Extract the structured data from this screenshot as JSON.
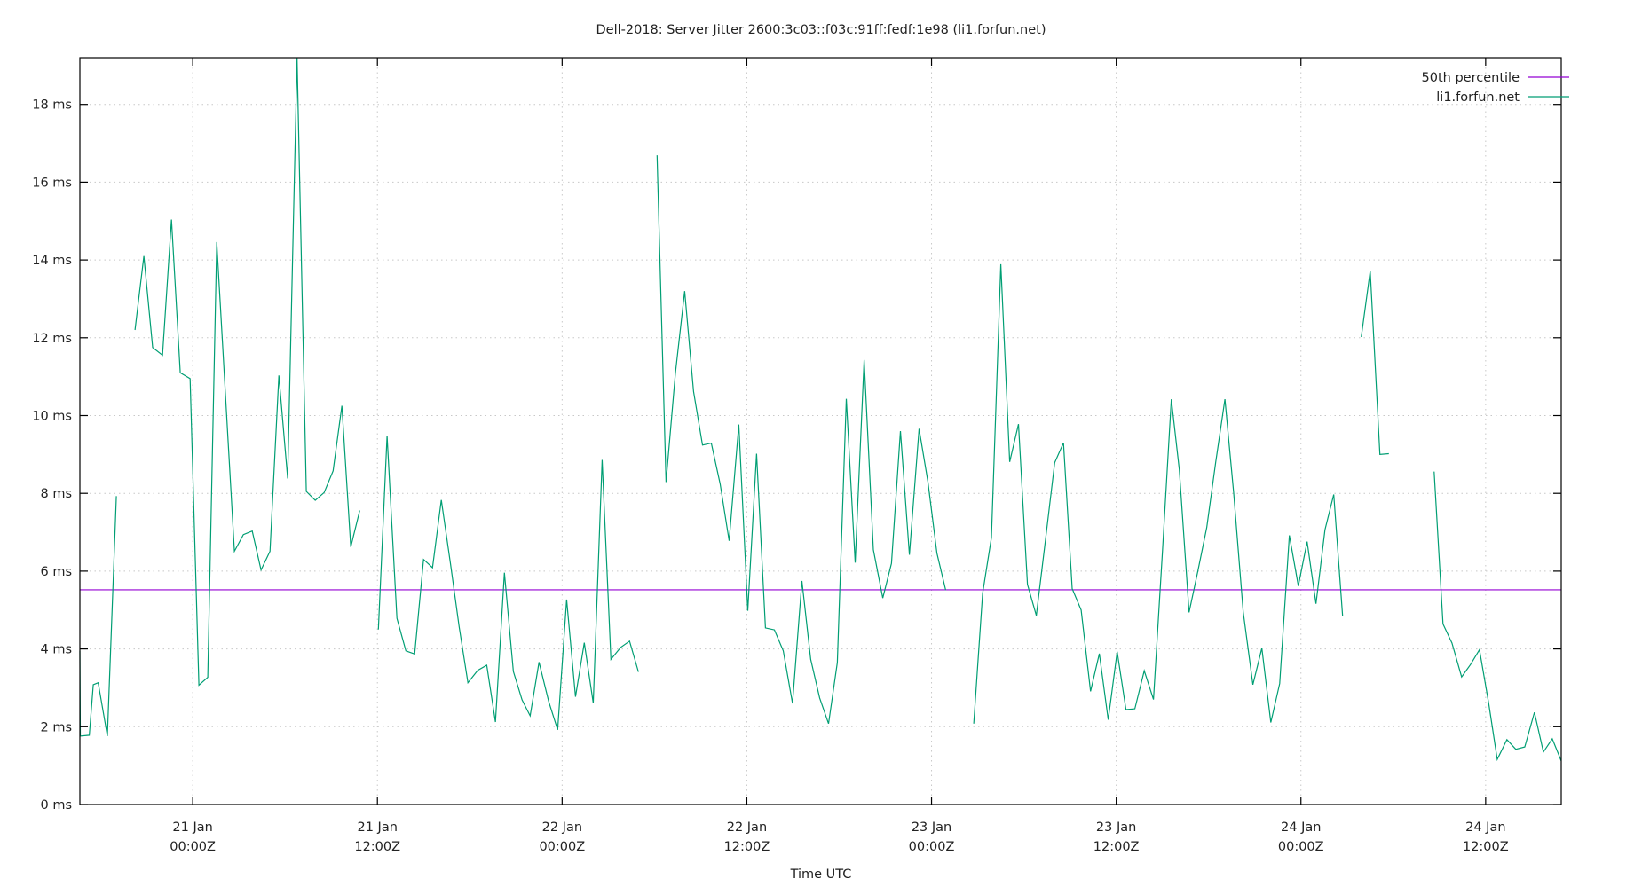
{
  "chart_data": {
    "type": "line",
    "title": "Dell-2018: Server Jitter 2600:3c03::f03c:91ff:fedf:1e98 (li1.forfun.net)",
    "xlabel": "Time UTC",
    "ylabel": "",
    "x_units": "hours since 21 Jan 00:00Z",
    "xlim": [
      -7.33,
      88.91
    ],
    "ylim": [
      0,
      19.2
    ],
    "grid": true,
    "legend_position": "top-right",
    "y_ticks": [
      {
        "value": 0,
        "label": "0 ms"
      },
      {
        "value": 2,
        "label": "2 ms"
      },
      {
        "value": 4,
        "label": "4 ms"
      },
      {
        "value": 6,
        "label": "6 ms"
      },
      {
        "value": 8,
        "label": "8 ms"
      },
      {
        "value": 10,
        "label": "10 ms"
      },
      {
        "value": 12,
        "label": "12 ms"
      },
      {
        "value": 14,
        "label": "14 ms"
      },
      {
        "value": 16,
        "label": "16 ms"
      },
      {
        "value": 18,
        "label": "18 ms"
      }
    ],
    "x_ticks": [
      {
        "value": 0,
        "line1": "21 Jan",
        "line2": "00:00Z"
      },
      {
        "value": 12,
        "line1": "21 Jan",
        "line2": "12:00Z"
      },
      {
        "value": 24,
        "line1": "22 Jan",
        "line2": "00:00Z"
      },
      {
        "value": 36,
        "line1": "22 Jan",
        "line2": "12:00Z"
      },
      {
        "value": 48,
        "line1": "23 Jan",
        "line2": "00:00Z"
      },
      {
        "value": 60,
        "line1": "23 Jan",
        "line2": "12:00Z"
      },
      {
        "value": 72,
        "line1": "24 Jan",
        "line2": "00:00Z"
      },
      {
        "value": 84,
        "line1": "24 Jan",
        "line2": "12:00Z"
      }
    ],
    "series": [
      {
        "name": "50th percentile",
        "color": "#9400d3",
        "kind": "hline",
        "value": 5.52
      },
      {
        "name": "li1.forfun.net",
        "color": "#009e73",
        "kind": "line",
        "segments": [
          [
            [
              -7.33,
              3.95
            ],
            [
              -7.3,
              1.76
            ],
            [
              -6.72,
              1.78
            ],
            [
              -6.46,
              3.08
            ],
            [
              -6.14,
              3.13
            ],
            [
              -5.54,
              1.76
            ],
            [
              -4.96,
              7.93
            ]
          ],
          [
            [
              -3.75,
              12.2
            ],
            [
              -3.17,
              14.1
            ],
            [
              -2.6,
              11.75
            ],
            [
              -1.96,
              11.55
            ],
            [
              -1.38,
              15.04
            ],
            [
              -0.81,
              11.1
            ],
            [
              -0.17,
              10.95
            ],
            [
              0.4,
              3.07
            ],
            [
              0.98,
              3.27
            ],
            [
              1.56,
              14.46
            ],
            [
              2.71,
              6.51
            ],
            [
              3.29,
              6.94
            ],
            [
              3.87,
              7.03
            ],
            [
              4.44,
              6.03
            ],
            [
              5.02,
              6.51
            ],
            [
              5.6,
              11.03
            ],
            [
              6.17,
              8.38
            ],
            [
              6.78,
              19.2
            ],
            [
              7.38,
              8.05
            ],
            [
              7.96,
              7.82
            ],
            [
              8.54,
              8.02
            ],
            [
              9.12,
              8.58
            ],
            [
              9.69,
              10.25
            ],
            [
              10.27,
              6.62
            ],
            [
              10.85,
              7.56
            ]
          ],
          [
            [
              12.06,
              4.5
            ],
            [
              12.63,
              9.48
            ],
            [
              13.27,
              4.79
            ],
            [
              13.85,
              3.95
            ],
            [
              14.42,
              3.87
            ],
            [
              15.0,
              6.3
            ],
            [
              15.58,
              6.09
            ],
            [
              16.15,
              7.83
            ],
            [
              16.73,
              6.23
            ],
            [
              17.31,
              4.57
            ],
            [
              17.88,
              3.13
            ],
            [
              18.52,
              3.45
            ],
            [
              19.1,
              3.58
            ],
            [
              19.67,
              2.12
            ],
            [
              20.25,
              5.96
            ],
            [
              20.83,
              3.42
            ],
            [
              21.4,
              2.69
            ],
            [
              21.92,
              2.28
            ],
            [
              22.5,
              3.66
            ],
            [
              23.13,
              2.65
            ],
            [
              23.71,
              1.92
            ],
            [
              24.29,
              5.27
            ],
            [
              24.87,
              2.77
            ],
            [
              25.44,
              4.16
            ],
            [
              26.02,
              2.61
            ],
            [
              26.6,
              8.86
            ],
            [
              27.17,
              3.73
            ],
            [
              27.81,
              4.04
            ],
            [
              28.38,
              4.2
            ],
            [
              28.96,
              3.41
            ]
          ],
          [
            [
              30.17,
              16.69
            ],
            [
              30.75,
              8.29
            ],
            [
              31.36,
              11.1
            ],
            [
              31.96,
              13.2
            ],
            [
              32.54,
              10.62
            ],
            [
              33.12,
              9.24
            ],
            [
              33.69,
              9.29
            ],
            [
              34.27,
              8.24
            ],
            [
              34.85,
              6.78
            ],
            [
              35.48,
              9.77
            ],
            [
              36.06,
              4.98
            ],
            [
              36.63,
              9.02
            ],
            [
              37.21,
              4.54
            ],
            [
              37.79,
              4.49
            ],
            [
              38.37,
              3.95
            ],
            [
              38.97,
              2.6
            ],
            [
              39.58,
              5.75
            ],
            [
              40.15,
              3.73
            ],
            [
              40.73,
              2.74
            ],
            [
              41.31,
              2.08
            ],
            [
              41.88,
              3.65
            ],
            [
              42.46,
              10.43
            ],
            [
              43.04,
              6.22
            ],
            [
              43.62,
              11.43
            ],
            [
              44.22,
              6.55
            ],
            [
              44.83,
              5.31
            ],
            [
              45.4,
              6.2
            ],
            [
              45.98,
              9.6
            ],
            [
              46.56,
              6.42
            ],
            [
              47.19,
              9.66
            ],
            [
              47.77,
              8.29
            ],
            [
              48.35,
              6.46
            ],
            [
              48.92,
              5.51
            ]
          ],
          [
            [
              50.74,
              2.08
            ],
            [
              51.32,
              5.43
            ],
            [
              51.89,
              6.86
            ],
            [
              52.5,
              13.89
            ],
            [
              53.08,
              8.81
            ],
            [
              53.65,
              9.78
            ],
            [
              54.23,
              5.66
            ],
            [
              54.81,
              4.86
            ],
            [
              55.4,
              6.8
            ],
            [
              56.0,
              8.79
            ],
            [
              56.57,
              9.3
            ],
            [
              57.14,
              5.55
            ],
            [
              57.72,
              5.0
            ],
            [
              58.33,
              2.91
            ],
            [
              58.9,
              3.88
            ],
            [
              59.48,
              2.18
            ],
            [
              60.06,
              3.93
            ],
            [
              60.63,
              2.44
            ],
            [
              61.21,
              2.46
            ],
            [
              61.82,
              3.44
            ],
            [
              62.42,
              2.7
            ],
            [
              63.0,
              6.5
            ],
            [
              63.58,
              10.42
            ],
            [
              64.1,
              8.61
            ],
            [
              64.73,
              4.94
            ],
            [
              65.3,
              6.0
            ],
            [
              65.88,
              7.12
            ],
            [
              66.46,
              8.8
            ],
            [
              67.06,
              10.42
            ],
            [
              67.63,
              8.0
            ],
            [
              68.25,
              4.95
            ],
            [
              68.88,
              3.08
            ],
            [
              69.46,
              4.02
            ],
            [
              70.04,
              2.11
            ],
            [
              70.62,
              3.11
            ],
            [
              71.25,
              6.92
            ],
            [
              71.83,
              5.62
            ],
            [
              72.4,
              6.76
            ],
            [
              72.98,
              5.16
            ],
            [
              73.56,
              7.06
            ],
            [
              74.13,
              7.97
            ],
            [
              74.71,
              4.84
            ]
          ],
          [
            [
              75.92,
              12.02
            ],
            [
              76.5,
              13.72
            ],
            [
              77.13,
              9.0
            ],
            [
              77.71,
              9.02
            ]
          ],
          [
            [
              80.65,
              8.56
            ],
            [
              81.23,
              4.64
            ],
            [
              81.81,
              4.15
            ],
            [
              82.44,
              3.28
            ],
            [
              83.02,
              3.6
            ],
            [
              83.6,
              3.98
            ],
            [
              84.2,
              2.6
            ],
            [
              84.75,
              1.16
            ],
            [
              85.38,
              1.67
            ],
            [
              85.96,
              1.42
            ],
            [
              86.54,
              1.48
            ],
            [
              87.17,
              2.37
            ],
            [
              87.75,
              1.35
            ],
            [
              88.33,
              1.69
            ],
            [
              88.91,
              1.12
            ]
          ]
        ]
      }
    ]
  },
  "legend": {
    "items": [
      {
        "label": "50th percentile",
        "color": "#9400d3"
      },
      {
        "label": "li1.forfun.net",
        "color": "#009e73"
      }
    ]
  }
}
